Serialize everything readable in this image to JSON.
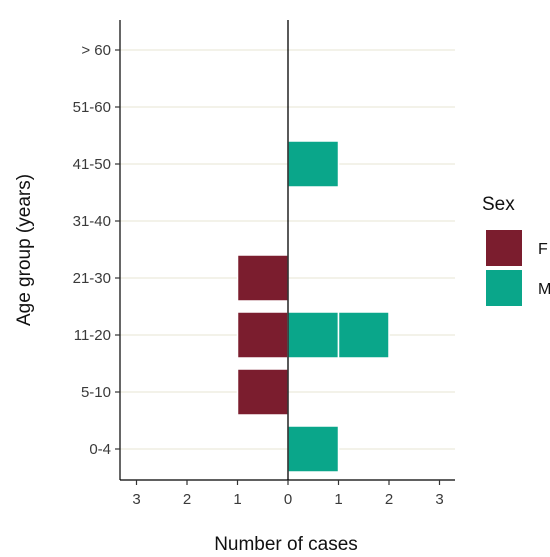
{
  "chart_data": {
    "type": "bar",
    "orientation": "horizontal",
    "subtype": "population-pyramid",
    "categories": [
      "0-4",
      "5-10",
      "11-20",
      "21-30",
      "31-40",
      "41-50",
      "51-60",
      "> 60"
    ],
    "series": [
      {
        "name": "F",
        "values": [
          0,
          1,
          1,
          1,
          0,
          0,
          0,
          0
        ],
        "side": "left"
      },
      {
        "name": "M",
        "values": [
          1,
          0,
          2,
          0,
          0,
          1,
          0,
          0
        ],
        "side": "right"
      }
    ],
    "xlabel": "Number of cases",
    "ylabel": "Age group (years)",
    "x_ticks": [
      -3,
      -2,
      -1,
      0,
      1,
      2,
      3
    ],
    "x_tick_labels": [
      "3",
      "2",
      "1",
      "0",
      "1",
      "2",
      "3"
    ],
    "xlim": [
      -3.2,
      3.2
    ],
    "grid": "horizontal",
    "legend": {
      "title": "Sex",
      "position": "right",
      "labels": [
        "F",
        "M"
      ]
    },
    "colors": {
      "F": "#7b1d2e",
      "M": "#0aa68a",
      "grid": "#ecebdc",
      "axis": "#000000"
    }
  }
}
